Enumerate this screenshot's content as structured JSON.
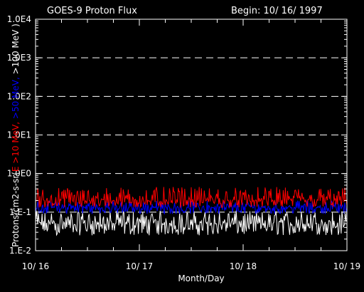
{
  "chart_data": {
    "type": "line",
    "title_left": "GOES-9 Proton Flux",
    "title_right": "Begin: 10/ 16/ 1997",
    "xlabel": "Month/Day",
    "ylabel_parts": [
      {
        "text": "Protons/cm2-s-sr(",
        "color": "#ffffff"
      },
      {
        "text": "E >10 MeV, ",
        "color": "#ff0000"
      },
      {
        "text": ">50 MeV, ",
        "color": "#0000ff"
      },
      {
        "text": ">100 MeV )",
        "color": "#ffffff"
      }
    ],
    "x_ticks": [
      "10/ 16",
      "10/ 17",
      "10/ 18",
      "10/ 19"
    ],
    "y_ticks": [
      "1.0E4",
      "1.0E3",
      "1.0E2",
      "1.0E1",
      "1.0E0",
      "1.E-1",
      "1.E-2"
    ],
    "y_tick_values": [
      10000,
      1000,
      100,
      10,
      1,
      0.1,
      0.01
    ],
    "xlim_days": [
      0,
      3
    ],
    "ylim": [
      0.01,
      10000
    ],
    "yscale": "log",
    "grid": "dashed horizontal at decades",
    "series": [
      {
        "color": "#ffffff",
        "typical": 0.05,
        "low": 0.025,
        "high": 0.11
      },
      {
        "color": "#0000ff",
        "typical": 0.13,
        "low": 0.09,
        "high": 0.2
      },
      {
        "color": "#ff0000",
        "typical": 0.2,
        "low": 0.13,
        "high": 0.45
      }
    ]
  }
}
